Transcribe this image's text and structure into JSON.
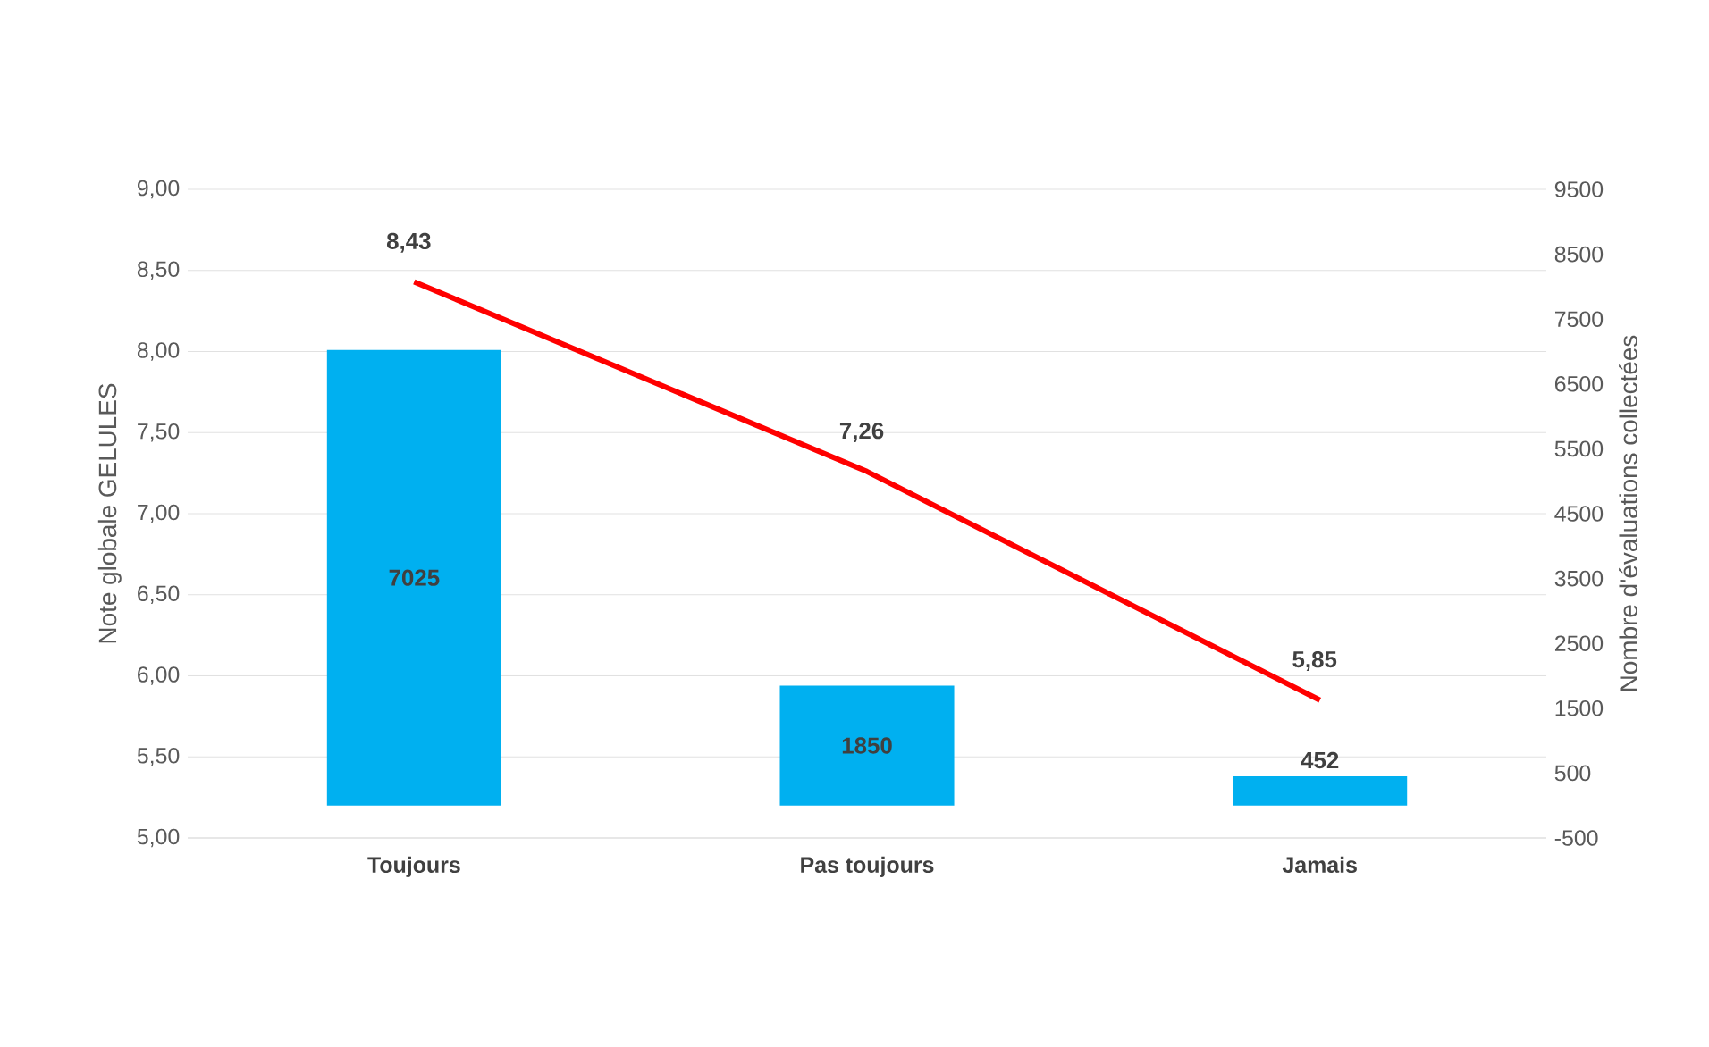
{
  "chart_data": {
    "type": "bar",
    "categories": [
      "Toujours",
      "Pas toujours",
      "Jamais"
    ],
    "ylabel": "Note globale GELULES",
    "y2label": "Nombre d'évaluations collectées",
    "ylim": [
      5,
      9
    ],
    "yticks": [
      {
        "value": 5,
        "label": "5,00"
      },
      {
        "value": 5.5,
        "label": "5,50"
      },
      {
        "value": 6,
        "label": "6,00"
      },
      {
        "value": 6.5,
        "label": "6,50"
      },
      {
        "value": 7,
        "label": "7,00"
      },
      {
        "value": 7.5,
        "label": "7,50"
      },
      {
        "value": 8,
        "label": "8,00"
      },
      {
        "value": 8.5,
        "label": "8,50"
      },
      {
        "value": 9,
        "label": "9,00"
      }
    ],
    "y2lim": [
      -500,
      9500
    ],
    "y2ticks": [
      -500,
      500,
      1500,
      2500,
      3500,
      4500,
      5500,
      6500,
      7500,
      8500,
      9500
    ],
    "grid": "y",
    "series": [
      {
        "axis": "y2",
        "color": "#00b0f0",
        "values": [
          7025,
          1850,
          452
        ],
        "value_labels": [
          "7025",
          "1850",
          "452"
        ]
      },
      {
        "type": "line",
        "color": "#ff0000",
        "values": [
          8.43,
          7.26,
          5.85
        ],
        "value_labels": [
          "8,43",
          "7,26",
          "5,85"
        ]
      }
    ]
  }
}
